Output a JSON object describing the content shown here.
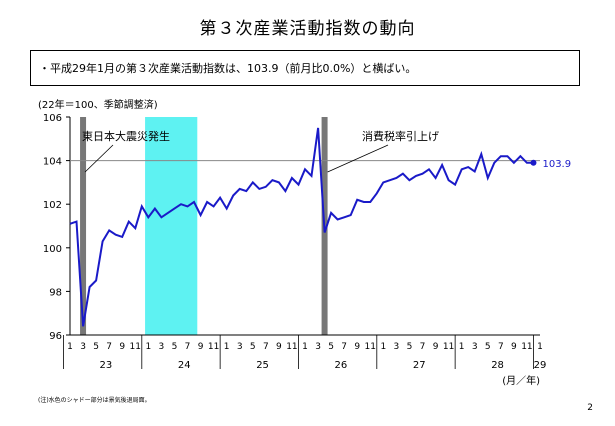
{
  "title": "第３次産業活動指数の動向",
  "summary": "・平成29年1月の第３次産業活動指数は、103.9（前月比0.0%）と横ばい。",
  "footnote": "(注)水色のシャドー部分は景気後退局面。",
  "page_number": "2",
  "chart_data": {
    "type": "line",
    "unit_note": "(22年＝100、季節調整済)",
    "ylim": [
      96,
      106
    ],
    "yticks": [
      96,
      98,
      100,
      102,
      104,
      106
    ],
    "reference_line": 104,
    "x_month_labels": [
      "1",
      "3",
      "5",
      "7",
      "9",
      "11",
      "1",
      "3",
      "5",
      "7",
      "9",
      "11",
      "1",
      "3",
      "5",
      "7",
      "9",
      "11",
      "1",
      "3",
      "5",
      "7",
      "9",
      "11",
      "1",
      "3",
      "5",
      "7",
      "9",
      "11",
      "1",
      "3",
      "5",
      "7",
      "9",
      "11",
      "1"
    ],
    "years": [
      "23",
      "24",
      "25",
      "26",
      "27",
      "28",
      "29"
    ],
    "x_unit": "(月／年)",
    "annotations": [
      {
        "text": "東日本大震災発生",
        "month_index": 2
      },
      {
        "text": "消費税率引上げ",
        "month_index": 39
      }
    ],
    "recession_shade": {
      "start_month_index": 12,
      "end_month_index": 19,
      "color": "#5ef2f2"
    },
    "event_bars": [
      2,
      39
    ],
    "last_value_label": "103.9",
    "series": [
      {
        "color": "#1a1ac8",
        "values": [
          101.1,
          101.2,
          96.4,
          98.2,
          98.5,
          100.3,
          100.8,
          100.6,
          100.5,
          101.2,
          100.9,
          101.9,
          101.4,
          101.8,
          101.4,
          101.6,
          101.8,
          102.0,
          101.9,
          102.1,
          101.5,
          102.1,
          101.9,
          102.3,
          101.8,
          102.4,
          102.7,
          102.6,
          103.0,
          102.7,
          102.8,
          103.1,
          103.0,
          102.6,
          103.2,
          102.9,
          103.6,
          103.3,
          105.5,
          100.7,
          101.6,
          101.3,
          101.4,
          101.5,
          102.2,
          102.1,
          102.1,
          102.5,
          103.0,
          103.1,
          103.2,
          103.4,
          103.1,
          103.3,
          103.4,
          103.6,
          103.2,
          103.8,
          103.1,
          102.9,
          103.6,
          103.7,
          103.5,
          104.3,
          103.2,
          103.9,
          104.2,
          104.2,
          103.9,
          104.2,
          103.9,
          103.9
        ]
      }
    ]
  }
}
